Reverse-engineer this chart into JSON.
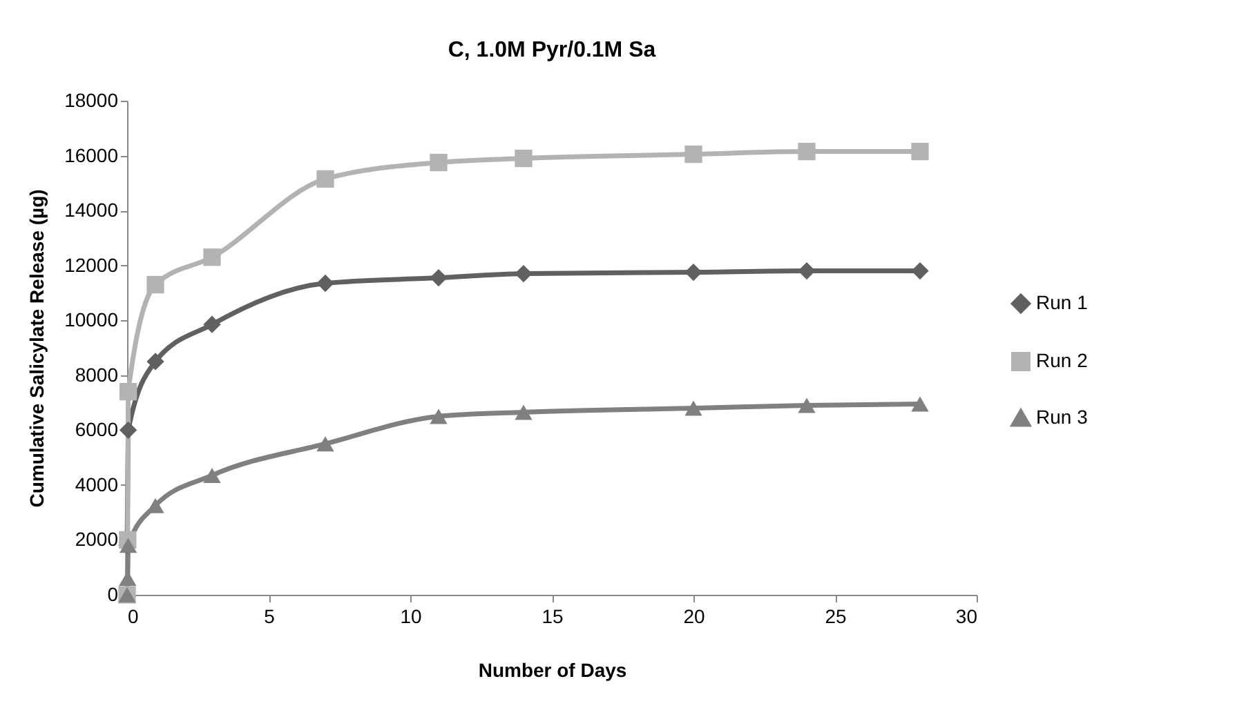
{
  "chart_data": {
    "type": "line",
    "title": "C, 1.0M Pyr/0.1M Sa",
    "xlabel": "Number of Days",
    "ylabel": "Cumulative Salicylate Release (µg)",
    "xlim": [
      0,
      30
    ],
    "xticks": [
      0,
      5,
      10,
      15,
      20,
      25,
      30
    ],
    "ylim": [
      0,
      18000
    ],
    "yticks": [
      0,
      2000,
      4000,
      6000,
      8000,
      10000,
      12000,
      14000,
      16000,
      18000
    ],
    "grid": false,
    "legend": "right",
    "marker": "circle",
    "line_style": "solid",
    "series": [
      {
        "name": "Run 1",
        "color": "#606060",
        "marker": "diamond",
        "x": [
          0,
          0.04,
          1,
          3,
          7,
          11,
          14,
          20,
          24,
          28
        ],
        "values": [
          1800,
          6000,
          8500,
          9850,
          11350,
          11550,
          11700,
          11750,
          11800,
          11800
        ]
      },
      {
        "name": "Run 2",
        "color": "#b3b3b3",
        "marker": "square",
        "x": [
          0,
          0.02,
          0.04,
          1,
          3,
          7,
          11,
          14,
          20,
          24,
          28
        ],
        "values": [
          0,
          2000,
          7400,
          11300,
          12300,
          15150,
          15750,
          15900,
          16050,
          16150,
          16150
        ]
      },
      {
        "name": "Run 3",
        "color": "#808080",
        "marker": "triangle",
        "x": [
          0,
          0.02,
          0.04,
          1,
          3,
          7,
          11,
          14,
          20,
          24,
          28
        ],
        "values": [
          0,
          600,
          1800,
          3250,
          4350,
          5500,
          6500,
          6650,
          6800,
          6900,
          6950
        ]
      }
    ]
  }
}
